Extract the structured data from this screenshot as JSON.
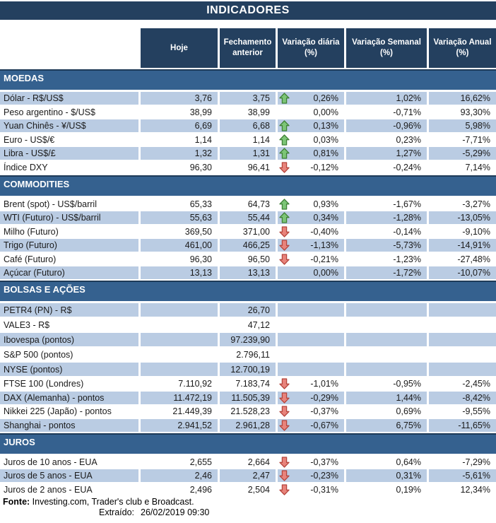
{
  "title": "INDICADORES",
  "columns": [
    "Hoje",
    "Fechamento anterior",
    "Variação diária (%)",
    "Variação Semanal (%)",
    "Variação Anual (%)"
  ],
  "sections": [
    {
      "id": "moedas",
      "name": "MOEDAS",
      "first_shaded": true,
      "rows": [
        {
          "label": "Dólar - R$/US$",
          "hoje": "3,76",
          "fechamento": "3,75",
          "arrow": "up",
          "diaria": "0,26%",
          "semanal": "1,02%",
          "anual": "16,62%"
        },
        {
          "label": "Peso argentino - $/US$",
          "hoje": "38,99",
          "fechamento": "38,99",
          "arrow": "none",
          "diaria": "0,00%",
          "semanal": "-0,71%",
          "anual": "93,30%"
        },
        {
          "label": "Yuan Chinês - ¥/US$",
          "hoje": "6,69",
          "fechamento": "6,68",
          "arrow": "up",
          "diaria": "0,13%",
          "semanal": "-0,96%",
          "anual": "5,98%"
        },
        {
          "label": "Euro - US$/€",
          "hoje": "1,14",
          "fechamento": "1,14",
          "arrow": "up",
          "diaria": "0,03%",
          "semanal": "0,23%",
          "anual": "-7,71%"
        },
        {
          "label": "Libra - US$/£",
          "hoje": "1,32",
          "fechamento": "1,31",
          "arrow": "up",
          "diaria": "0,81%",
          "semanal": "1,27%",
          "anual": "-5,29%"
        },
        {
          "label": "Índice DXY",
          "hoje": "96,30",
          "fechamento": "96,41",
          "arrow": "down",
          "diaria": "-0,12%",
          "semanal": "-0,24%",
          "anual": "7,14%"
        }
      ]
    },
    {
      "id": "commodities",
      "name": "COMMODITIES",
      "first_shaded": false,
      "rows": [
        {
          "label": "Brent (spot) - US$/barril",
          "hoje": "65,33",
          "fechamento": "64,73",
          "arrow": "up",
          "diaria": "0,93%",
          "semanal": "-1,67%",
          "anual": "-3,27%"
        },
        {
          "label": "WTI (Futuro) - US$/barril",
          "hoje": "55,63",
          "fechamento": "55,44",
          "arrow": "up",
          "diaria": "0,34%",
          "semanal": "-1,28%",
          "anual": "-13,05%"
        },
        {
          "label": "Milho (Futuro)",
          "hoje": "369,50",
          "fechamento": "371,00",
          "arrow": "down",
          "diaria": "-0,40%",
          "semanal": "-0,14%",
          "anual": "-9,10%"
        },
        {
          "label": "Trigo (Futuro)",
          "hoje": "461,00",
          "fechamento": "466,25",
          "arrow": "down",
          "diaria": "-1,13%",
          "semanal": "-5,73%",
          "anual": "-14,91%"
        },
        {
          "label": "Café (Futuro)",
          "hoje": "96,30",
          "fechamento": "96,50",
          "arrow": "down",
          "diaria": "-0,21%",
          "semanal": "-1,23%",
          "anual": "-27,48%"
        },
        {
          "label": "Açúcar (Futuro)",
          "hoje": "13,13",
          "fechamento": "13,13",
          "arrow": "none",
          "diaria": "0,00%",
          "semanal": "-1,72%",
          "anual": "-10,07%"
        }
      ]
    },
    {
      "id": "bolsas-e-acoes",
      "name": "BOLSAS E AÇÕES",
      "first_shaded": true,
      "rows": [
        {
          "label": "PETR4 (PN) - R$",
          "hoje": "",
          "fechamento": "26,70",
          "arrow": "none",
          "diaria": "",
          "semanal": "",
          "anual": "",
          "tall": true
        },
        {
          "label": "VALE3 - R$",
          "hoje": "",
          "fechamento": "47,12",
          "arrow": "none",
          "diaria": "",
          "semanal": "",
          "anual": "",
          "tall": true
        },
        {
          "label": "Ibovespa (pontos)",
          "hoje": "",
          "fechamento": "97.239,90",
          "arrow": "none",
          "diaria": "",
          "semanal": "",
          "anual": "",
          "tall": true
        },
        {
          "label": "S&P 500 (pontos)",
          "hoje": "",
          "fechamento": "2.796,11",
          "arrow": "none",
          "diaria": "",
          "semanal": "",
          "anual": "",
          "tall": true
        },
        {
          "label": "NYSE (pontos)",
          "hoje": "",
          "fechamento": "12.700,19",
          "arrow": "none",
          "diaria": "",
          "semanal": "",
          "anual": "",
          "tall": true
        },
        {
          "label": "FTSE 100 (Londres)",
          "hoje": "7.110,92",
          "fechamento": "7.183,74",
          "arrow": "down",
          "diaria": "-1,01%",
          "semanal": "-0,95%",
          "anual": "-2,45%"
        },
        {
          "label": "DAX (Alemanha) - pontos",
          "hoje": "11.472,19",
          "fechamento": "11.505,39",
          "arrow": "down",
          "diaria": "-0,29%",
          "semanal": "1,44%",
          "anual": "-8,42%"
        },
        {
          "label": "Nikkei 225 (Japão) - pontos",
          "hoje": "21.449,39",
          "fechamento": "21.528,23",
          "arrow": "down",
          "diaria": "-0,37%",
          "semanal": "0,69%",
          "anual": "-9,55%"
        },
        {
          "label": "Shanghai - pontos",
          "hoje": "2.941,52",
          "fechamento": "2.961,28",
          "arrow": "down",
          "diaria": "-0,67%",
          "semanal": "6,75%",
          "anual": "-11,65%"
        }
      ]
    },
    {
      "id": "juros",
      "name": "JUROS",
      "first_shaded": false,
      "rows": [
        {
          "label": "Juros de 10 anos - EUA",
          "hoje": "2,655",
          "fechamento": "2,664",
          "arrow": "down",
          "diaria": "-0,37%",
          "semanal": "0,64%",
          "anual": "-7,29%"
        },
        {
          "label": "Juros de 5 anos - EUA",
          "hoje": "2,46",
          "fechamento": "2,47",
          "arrow": "down",
          "diaria": "-0,23%",
          "semanal": "0,31%",
          "anual": "-5,61%"
        },
        {
          "label": "Juros de 2 anos - EUA",
          "hoje": "2,496",
          "fechamento": "2,504",
          "arrow": "down",
          "diaria": "-0,31%",
          "semanal": "0,19%",
          "anual": "12,34%"
        }
      ]
    }
  ],
  "footer": {
    "fonte_label": "Fonte:",
    "fonte_text": " Investing.com, Trader's club e Broadcast.",
    "extraido_label": "Extraído:",
    "extraido_value": "26/02/2019 09:30"
  },
  "colors": {
    "title_bar": "#24405F",
    "column_header": "#24405F",
    "section_header": "#35618F",
    "section_border": "#1E3A58",
    "row_shaded": "#BACCE3",
    "text": "#1A1A1A",
    "arrow_up_fill": "#7CC576",
    "arrow_up_stroke": "#3F8136",
    "arrow_down_fill": "#E8837B",
    "arrow_down_stroke": "#B5463D"
  },
  "icons": {
    "up": "up-arrow-icon",
    "down": "down-arrow-icon"
  }
}
